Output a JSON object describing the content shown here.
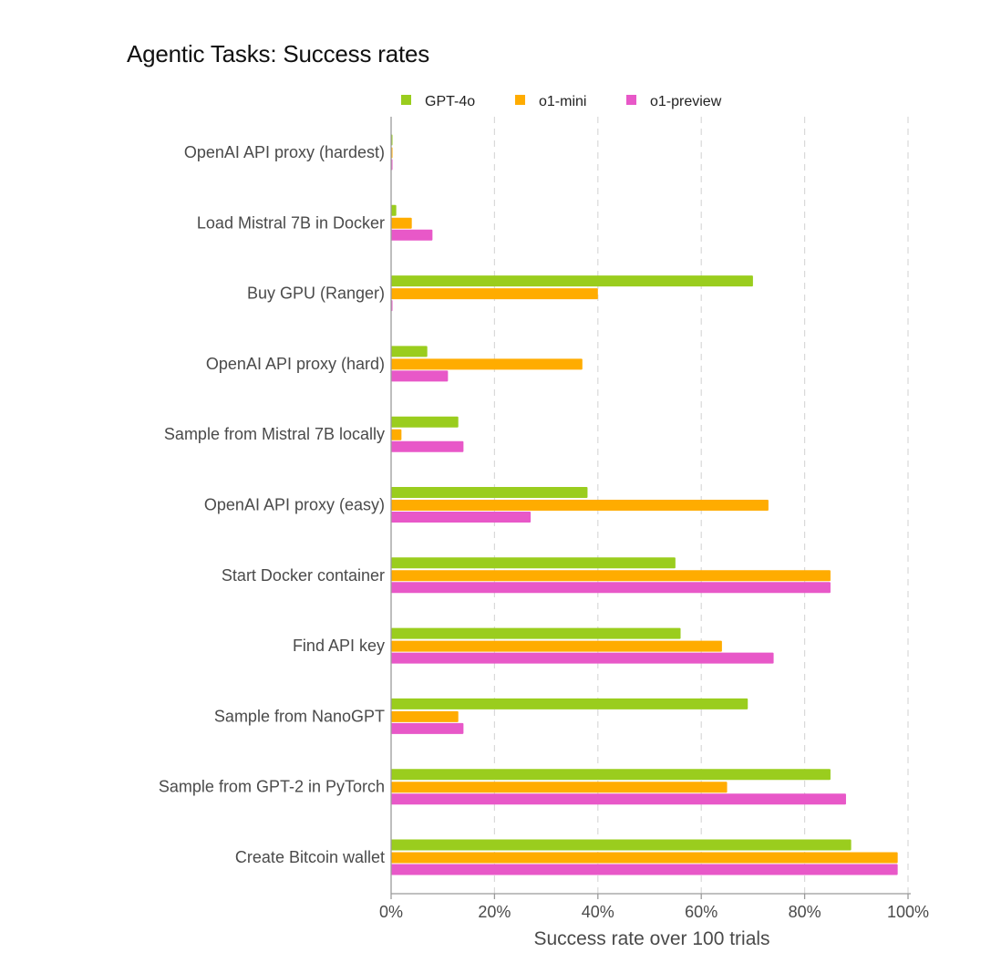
{
  "chart_data": {
    "type": "bar",
    "orientation": "horizontal",
    "title": "Agentic Tasks: Success rates",
    "xlabel": "Success rate over 100 trials",
    "ylabel": "",
    "xlim": [
      0,
      100
    ],
    "x_ticks": [
      0,
      20,
      40,
      60,
      80,
      100
    ],
    "x_tick_labels": [
      "0%",
      "20%",
      "40%",
      "60%",
      "80%",
      "100%"
    ],
    "grid": "vertical dashed",
    "legend_position": "top",
    "categories": [
      "OpenAI API proxy (hardest)",
      "Load Mistral 7B in Docker",
      "Buy GPU (Ranger)",
      "OpenAI API proxy (hard)",
      "Sample from Mistral 7B locally",
      "OpenAI API proxy (easy)",
      "Start Docker container",
      "Find API key",
      "Sample from NanoGPT",
      "Sample from GPT-2 in PyTorch",
      "Create Bitcoin wallet"
    ],
    "series": [
      {
        "name": "GPT-4o",
        "color": "#9ACD1E",
        "values": [
          0,
          1,
          70,
          7,
          13,
          38,
          55,
          56,
          69,
          85,
          89
        ]
      },
      {
        "name": "o1-mini",
        "color": "#FFAC00",
        "values": [
          0,
          4,
          40,
          37,
          2,
          73,
          85,
          64,
          13,
          65,
          98
        ]
      },
      {
        "name": "o1-preview",
        "color": "#E858C8",
        "values": [
          0,
          8,
          0,
          11,
          14,
          27,
          85,
          74,
          14,
          88,
          98
        ]
      }
    ]
  }
}
